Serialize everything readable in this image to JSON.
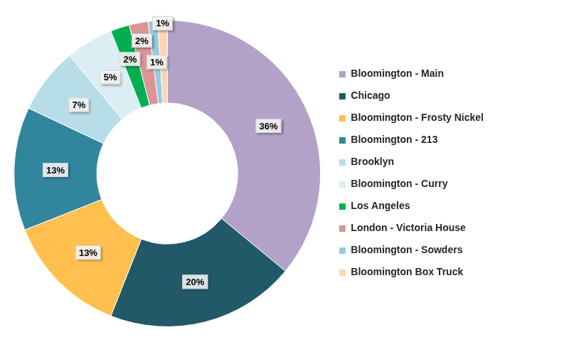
{
  "chart_data": {
    "type": "doughnut",
    "categories": [
      "Bloomington - Main",
      "Chicago",
      "Bloomington - Frosty Nickel",
      "Bloomington - 213",
      "Brooklyn",
      "Bloomington - Curry",
      "Los Angeles",
      "London - Victoria House",
      "Bloomington - Sowders",
      "Bloomington Box Truck"
    ],
    "values": [
      36,
      20,
      13,
      13,
      7,
      5,
      2,
      2,
      1,
      1
    ],
    "value_labels": [
      "36%",
      "20%",
      "13%",
      "13%",
      "7%",
      "5%",
      "2%",
      "2%",
      "1%",
      "1%"
    ],
    "colors": [
      "#b3a2c7",
      "#215968",
      "#ffc04d",
      "#31859c",
      "#b7dee8",
      "#dbeef4",
      "#00b050",
      "#d99694",
      "#93cddd",
      "#fcd5b5"
    ],
    "data_labels": true,
    "legend": "right"
  }
}
